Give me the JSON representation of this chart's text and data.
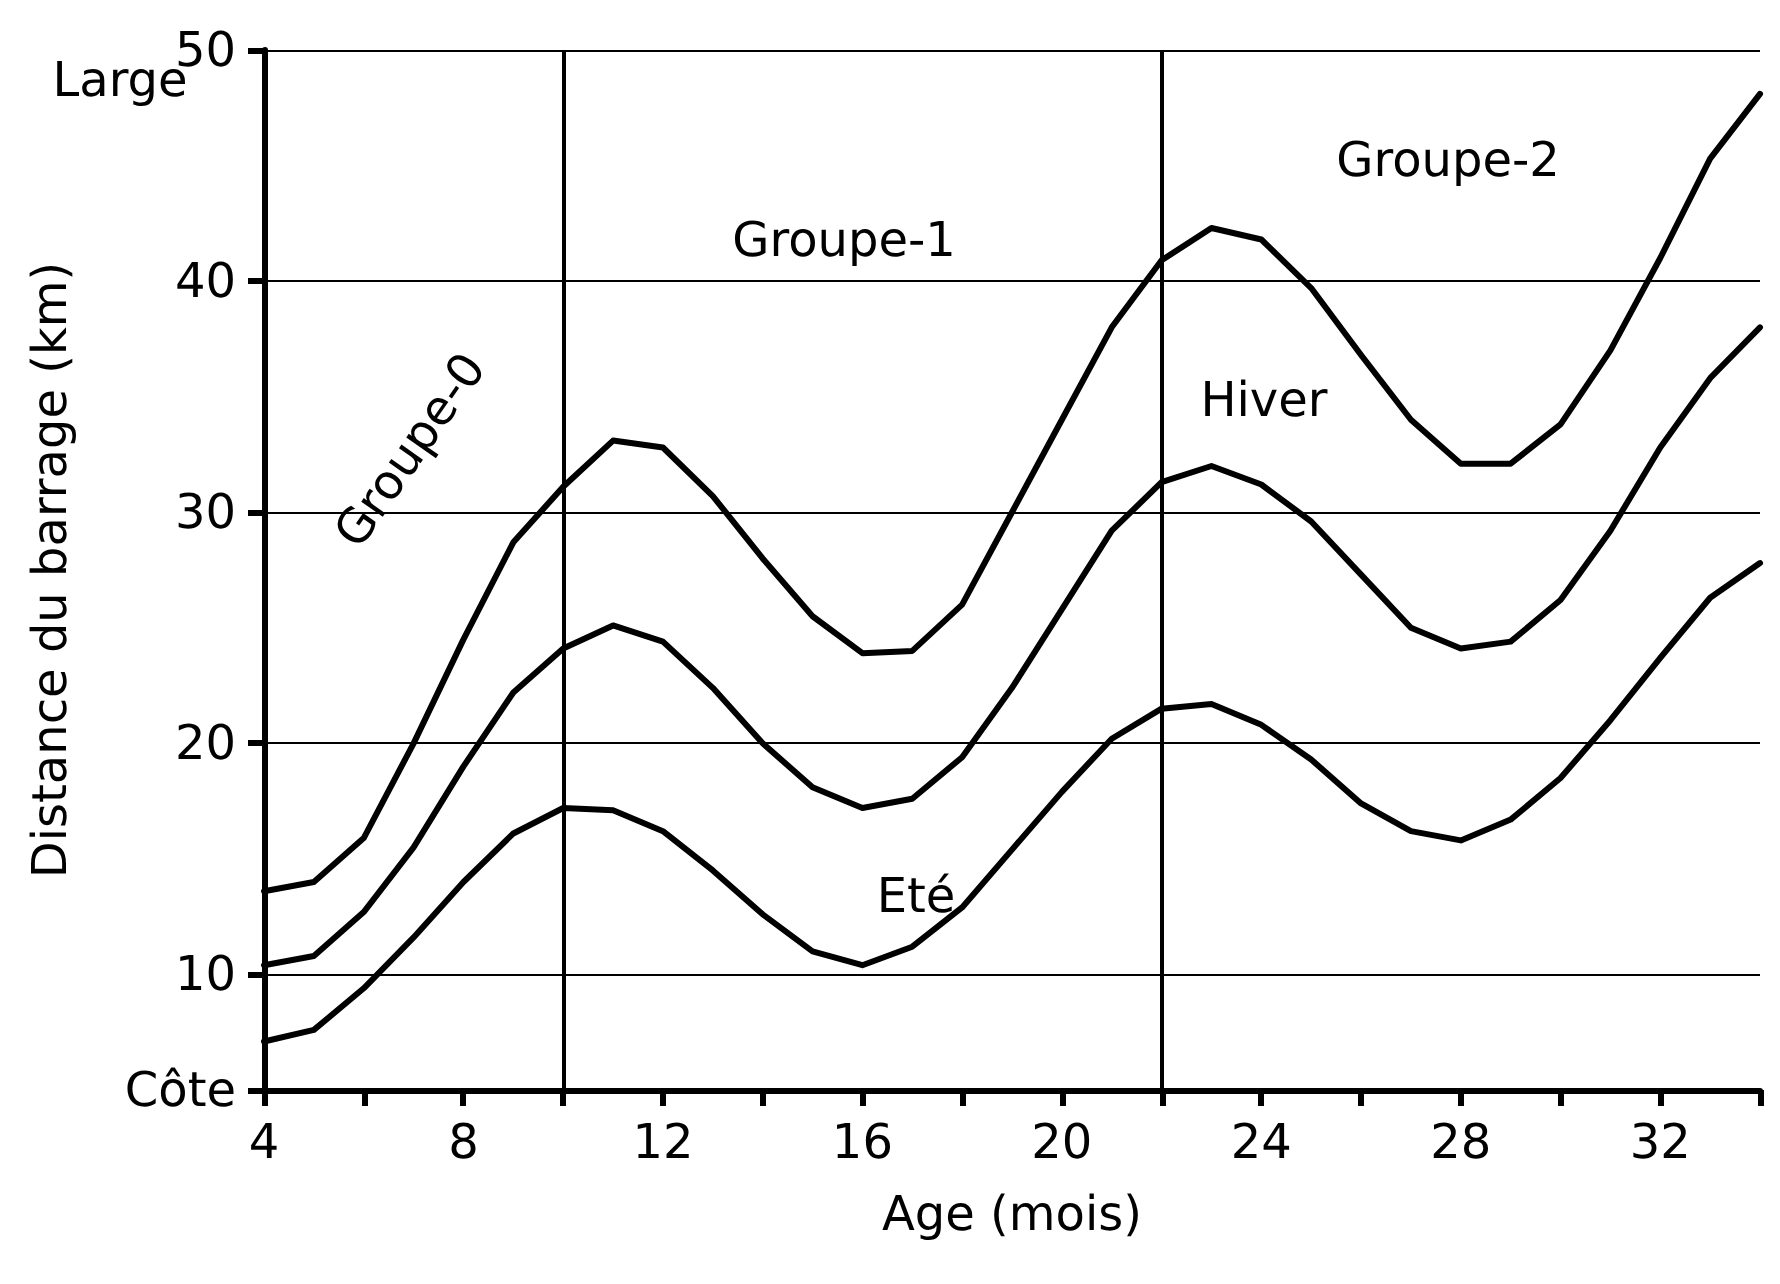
{
  "chart_data": {
    "type": "line",
    "xlabel": "Age (mois)",
    "ylabel": "Distance du barrage (km)",
    "x": [
      4,
      5,
      6,
      7,
      8,
      9,
      10,
      11,
      12,
      13,
      14,
      15,
      16,
      17,
      18,
      19,
      20,
      21,
      22,
      23,
      24,
      25,
      26,
      27,
      28,
      29,
      30,
      31,
      32,
      33,
      34
    ],
    "series": [
      {
        "color": "#000000",
        "values": [
          13.6,
          14.0,
          15.9,
          20,
          24.5,
          28.7,
          31.1,
          33.1,
          32.8,
          30.7,
          28,
          25.5,
          23.9,
          24.0,
          26,
          30,
          34,
          38,
          40.9,
          42.3,
          41.8,
          39.7,
          36.8,
          34,
          32.1,
          32.1,
          33.8,
          37,
          41,
          45.3,
          48.1
        ]
      },
      {
        "color": "#000000",
        "values": [
          10.4,
          10.8,
          12.7,
          15.5,
          19,
          22.2,
          24.1,
          25.1,
          24.4,
          22.4,
          20,
          18.1,
          17.2,
          17.6,
          19.4,
          22.4,
          25.8,
          29.2,
          31.3,
          32.0,
          31.2,
          29.6,
          27.3,
          25,
          24.1,
          24.4,
          26.2,
          29.2,
          32.8,
          35.8,
          38.0
        ]
      },
      {
        "color": "#000000",
        "values": [
          7.1,
          7.6,
          9.4,
          11.6,
          14,
          16.1,
          17.2,
          17.1,
          16.2,
          14.5,
          12.6,
          11,
          10.4,
          11.2,
          12.9,
          15.4,
          17.9,
          20.2,
          21.5,
          21.7,
          20.8,
          19.3,
          17.4,
          16.2,
          15.8,
          16.7,
          18.5,
          21,
          23.7,
          26.3,
          27.8
        ]
      }
    ],
    "xlim": [
      4,
      34
    ],
    "xticks": [
      4,
      {
        "value": 6,
        "label": null
      },
      8,
      {
        "value": 10,
        "label": null
      },
      12,
      {
        "value": 14,
        "label": null
      },
      16,
      {
        "value": 18,
        "label": null
      },
      20,
      {
        "value": 22,
        "label": null
      },
      24,
      {
        "value": 26,
        "label": null
      },
      28,
      {
        "value": 30,
        "label": null
      },
      32,
      {
        "value": 34,
        "label": null
      }
    ],
    "ylim": [
      5,
      50
    ],
    "yticks": [
      {
        "value": 5,
        "label": "Côte"
      },
      10,
      20,
      30,
      40,
      50
    ],
    "grid": "y",
    "marker": "none",
    "line_style": "solid",
    "ref_lines": [
      {
        "axis": "x",
        "value": 10,
        "color": "#000000"
      },
      {
        "axis": "x",
        "value": 22,
        "color": "#000000"
      }
    ],
    "annotations": [
      "Groupe-0",
      "Groupe-1",
      "Groupe-2",
      "Hiver",
      "Eté",
      "Large"
    ]
  }
}
